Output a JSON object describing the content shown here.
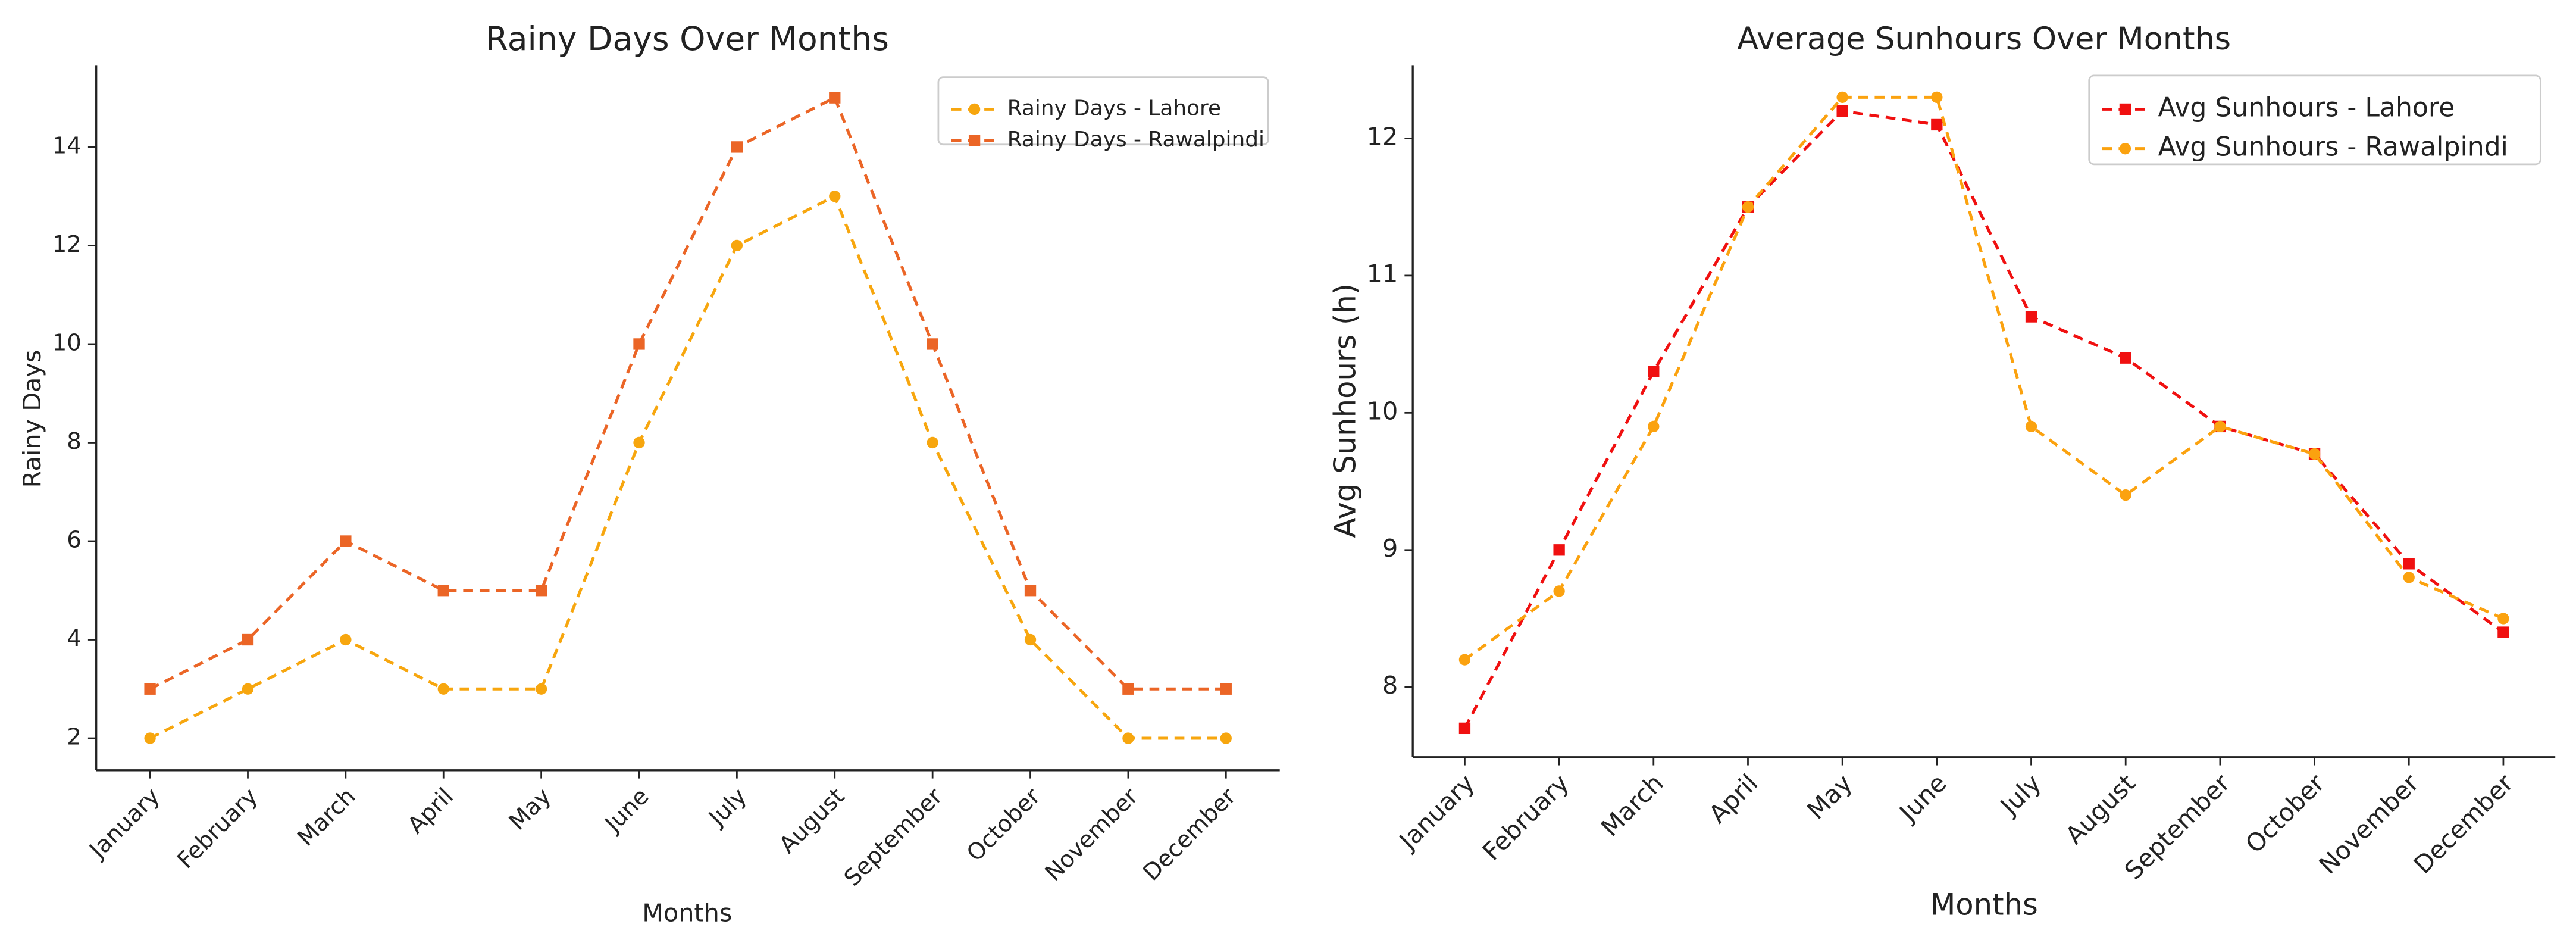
{
  "chart_data": [
    {
      "type": "line",
      "title": "Rainy Days Over Months",
      "xlabel": "Months",
      "ylabel": "Rainy Days",
      "categories": [
        "January",
        "February",
        "March",
        "April",
        "May",
        "June",
        "July",
        "August",
        "September",
        "October",
        "November",
        "December"
      ],
      "series": [
        {
          "name": "Rainy Days - Lahore",
          "color": "#f7a60e",
          "marker": "circle",
          "values": [
            2,
            3,
            4,
            3,
            3,
            8,
            12,
            13,
            8,
            4,
            2,
            2
          ]
        },
        {
          "name": "Rainy Days - Rawalpindi",
          "color": "#eb6526",
          "marker": "square",
          "values": [
            3,
            4,
            6,
            5,
            5,
            10,
            14,
            15,
            10,
            5,
            3,
            3
          ]
        }
      ],
      "ylim": [
        1.35,
        15.65
      ],
      "yticks": [
        2,
        4,
        6,
        8,
        10,
        12,
        14
      ],
      "linestyle": "dashed",
      "legend": "upper right"
    },
    {
      "type": "line",
      "title": "Average Sunhours Over Months",
      "xlabel": "Months",
      "ylabel": "Avg Sunhours (h)",
      "categories": [
        "January",
        "February",
        "March",
        "April",
        "May",
        "June",
        "July",
        "August",
        "September",
        "October",
        "November",
        "December"
      ],
      "series": [
        {
          "name": "Avg Sunhours - Lahore",
          "color": "#f01010",
          "marker": "square",
          "values": [
            7.7,
            9.0,
            10.3,
            11.5,
            12.2,
            12.1,
            10.7,
            10.4,
            9.9,
            9.7,
            8.9,
            8.4
          ]
        },
        {
          "name": "Avg Sunhours - Rawalpindi",
          "color": "#fba20f",
          "marker": "circle",
          "values": [
            8.2,
            8.7,
            9.9,
            11.5,
            12.3,
            12.3,
            9.9,
            9.4,
            9.9,
            9.7,
            8.8,
            8.5
          ]
        }
      ],
      "ylim": [
        7.49,
        12.53
      ],
      "yticks": [
        8,
        9,
        10,
        11,
        12
      ],
      "linestyle": "dashed",
      "legend": "upper right"
    }
  ]
}
